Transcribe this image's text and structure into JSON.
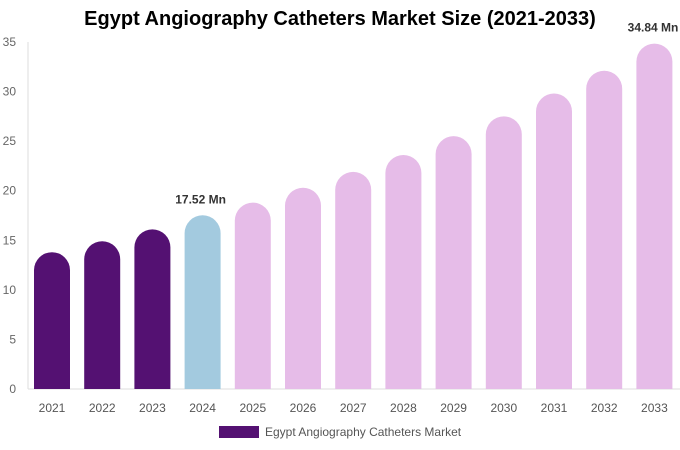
{
  "chart_data": {
    "type": "bar",
    "title": "Egypt Angiography Catheters Market Size (2021-2033)",
    "categories": [
      "2021",
      "2022",
      "2023",
      "2024",
      "2025",
      "2026",
      "2027",
      "2028",
      "2029",
      "2030",
      "2031",
      "2032",
      "2033"
    ],
    "series": [
      {
        "name": "Egypt Angiography Catheters Market",
        "values": [
          13.8,
          14.9,
          16.1,
          17.52,
          18.8,
          20.3,
          21.9,
          23.6,
          25.5,
          27.5,
          29.8,
          32.1,
          34.84
        ]
      }
    ],
    "data_labels": [
      {
        "category": "2024",
        "text": "17.52 Mn"
      },
      {
        "category": "2033",
        "text": "34.84 Mn"
      }
    ],
    "ylim": [
      0,
      35
    ],
    "yticks": [
      0,
      5,
      10,
      15,
      20,
      25,
      30,
      35
    ],
    "xlabel": "",
    "ylabel": "",
    "grid": false,
    "legend_position": "bottom",
    "colors": {
      "historical": "#541172",
      "current": "#a3cadf",
      "forecast": "#e6bce8"
    }
  }
}
